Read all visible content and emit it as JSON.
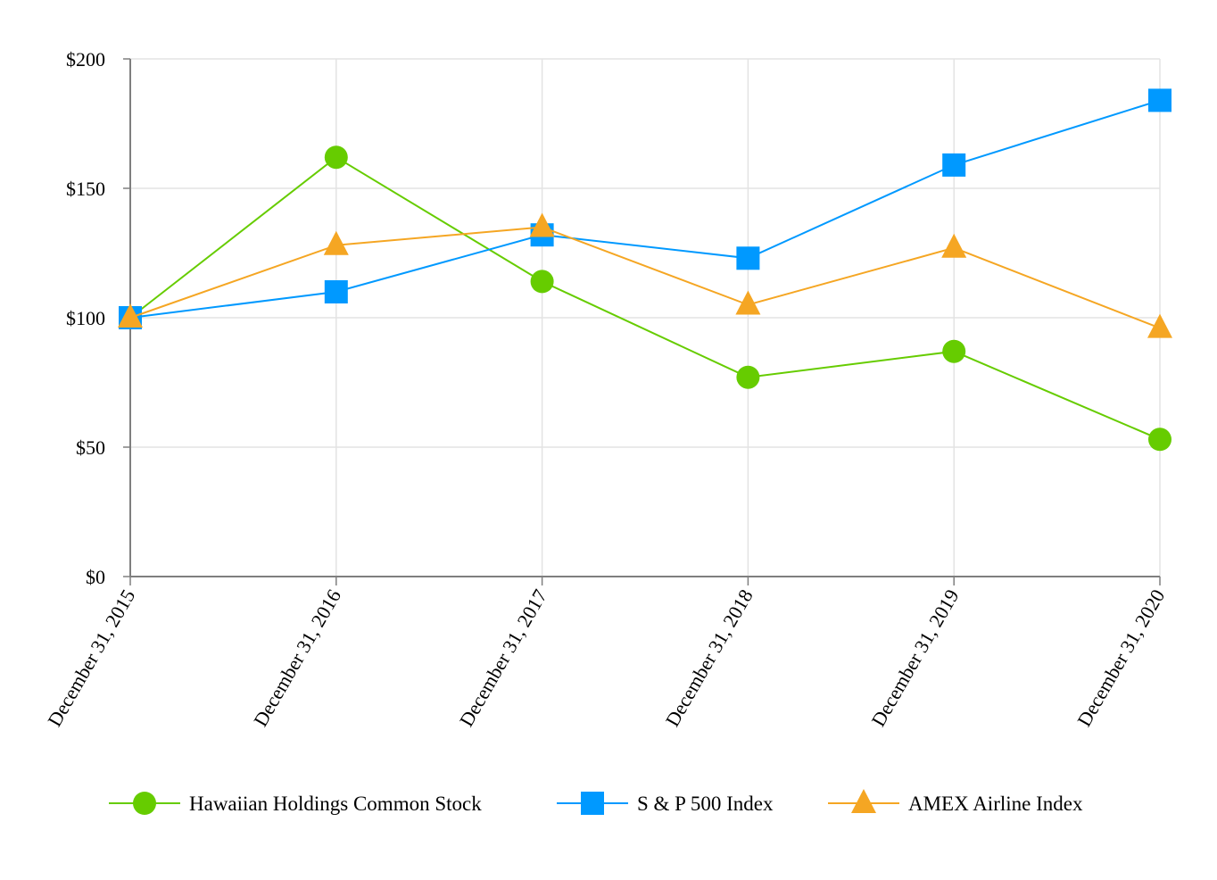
{
  "chart_data": {
    "type": "line",
    "title": "",
    "xlabel": "",
    "ylabel": "",
    "categories": [
      "December 31, 2015",
      "December 31, 2016",
      "December 31, 2017",
      "December 31, 2018",
      "December 31, 2019",
      "December 31, 2020"
    ],
    "ylim": [
      0,
      200
    ],
    "yticks": [
      0,
      50,
      100,
      150,
      200
    ],
    "ytick_labels": [
      "$0",
      "$50",
      "$100",
      "$150",
      "$200"
    ],
    "grid": true,
    "legend_position": "bottom",
    "series": [
      {
        "name": "Hawaiian Holdings Common Stock",
        "marker": "circle",
        "color": "#66cc00",
        "values": [
          100,
          162,
          114,
          77,
          87,
          53
        ]
      },
      {
        "name": "S & P 500 Index",
        "marker": "square",
        "color": "#0099ff",
        "values": [
          100,
          110,
          132,
          123,
          159,
          184
        ]
      },
      {
        "name": "AMEX Airline Index",
        "marker": "triangle",
        "color": "#f5a623",
        "values": [
          100,
          128,
          135,
          105,
          127,
          96
        ]
      }
    ]
  }
}
